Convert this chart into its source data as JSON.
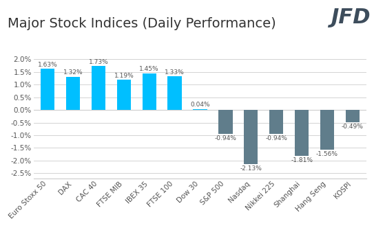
{
  "title": "Major Stock Indices (Daily Performance)",
  "categories": [
    "Euro Stoxx 50",
    "DAX",
    "CAC 40",
    "FTSE MIB",
    "IBEX 35",
    "FTSE 100",
    "Dow 30",
    "S&P 500",
    "Nasdaq",
    "Nikkei 225",
    "Shanghai",
    "Hang Seng",
    "KOSPI"
  ],
  "values": [
    1.63,
    1.32,
    1.73,
    1.19,
    1.45,
    1.33,
    0.04,
    -0.94,
    -2.13,
    -0.94,
    -1.81,
    -1.56,
    -0.49
  ],
  "labels": [
    "1.63%",
    "1.32%",
    "1.73%",
    "1.19%",
    "1.45%",
    "1.33%",
    "0.04%",
    "-0.94%",
    "-2.13%",
    "-0.94%",
    "-1.81%",
    "-1.56%",
    "-0.49%"
  ],
  "positive_color": "#00BFFF",
  "negative_color": "#607D8B",
  "background_color": "#FFFFFF",
  "grid_color": "#CCCCCC",
  "title_color": "#333333",
  "label_color": "#555555",
  "jfd_color": "#3D4D5C",
  "ylim": [
    -2.7,
    2.25
  ],
  "yticks": [
    -2.5,
    -2.0,
    -1.5,
    -1.0,
    -0.5,
    0.0,
    0.5,
    1.0,
    1.5,
    2.0
  ],
  "ytick_labels": [
    "-2.5%",
    "-2.0%",
    "-1.5%",
    "-1.0%",
    "-0.5%",
    "0.0%",
    "0.5%",
    "1.0%",
    "1.5%",
    "2.0%"
  ],
  "title_fontsize": 14,
  "label_fontsize": 6.5,
  "tick_fontsize": 7.5,
  "bar_width": 0.55
}
